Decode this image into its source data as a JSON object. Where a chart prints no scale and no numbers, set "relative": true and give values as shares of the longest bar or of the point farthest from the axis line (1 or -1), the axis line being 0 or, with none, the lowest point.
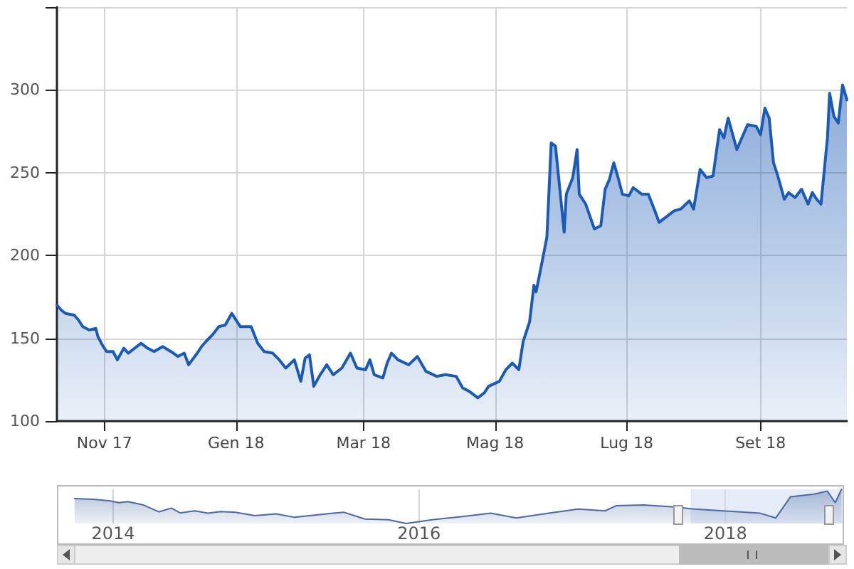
{
  "chart_data": [
    {
      "type": "area",
      "x": [
        "2017-10-10",
        "2017-10-12",
        "2017-10-14",
        "2017-10-18",
        "2017-10-20",
        "2017-10-22",
        "2017-10-25",
        "2017-10-28",
        "2017-10-29",
        "2017-10-31",
        "2017-11-02",
        "2017-11-05",
        "2017-11-07",
        "2017-11-10",
        "2017-11-12",
        "2017-11-15",
        "2017-11-18",
        "2017-11-21",
        "2017-11-24",
        "2017-11-28",
        "2017-12-03",
        "2017-12-05",
        "2017-12-08",
        "2017-12-10",
        "2017-12-14",
        "2017-12-16",
        "2017-12-18",
        "2017-12-21",
        "2017-12-24",
        "2017-12-27",
        "2017-12-30",
        "2018-01-03",
        "2018-01-08",
        "2018-01-11",
        "2018-01-14",
        "2018-01-18",
        "2018-01-21",
        "2018-01-24",
        "2018-01-28",
        "2018-01-31",
        "2018-02-02",
        "2018-02-04",
        "2018-02-06",
        "2018-02-09",
        "2018-02-12",
        "2018-02-15",
        "2018-02-19",
        "2018-02-23",
        "2018-02-26",
        "2018-03-02",
        "2018-03-04",
        "2018-03-06",
        "2018-03-10",
        "2018-03-12",
        "2018-03-14",
        "2018-03-17",
        "2018-03-22",
        "2018-03-26",
        "2018-03-30",
        "2018-04-04",
        "2018-04-08",
        "2018-04-13",
        "2018-04-16",
        "2018-04-19",
        "2018-04-23",
        "2018-04-26",
        "2018-04-28",
        "2018-05-03",
        "2018-05-06",
        "2018-05-09",
        "2018-05-12",
        "2018-05-14",
        "2018-05-17",
        "2018-05-19",
        "2018-05-20",
        "2018-05-22",
        "2018-05-25",
        "2018-05-27",
        "2018-05-29",
        "2018-05-31",
        "2018-06-02",
        "2018-06-03",
        "2018-06-06",
        "2018-06-08",
        "2018-06-09",
        "2018-06-12",
        "2018-06-16",
        "2018-06-19",
        "2018-06-21",
        "2018-06-23",
        "2018-06-25",
        "2018-06-27",
        "2018-06-29",
        "2018-07-02",
        "2018-07-04",
        "2018-07-08",
        "2018-07-11",
        "2018-07-14",
        "2018-07-16",
        "2018-07-20",
        "2018-07-23",
        "2018-07-26",
        "2018-07-30",
        "2018-08-01",
        "2018-08-04",
        "2018-08-07",
        "2018-08-10",
        "2018-08-13",
        "2018-08-15",
        "2018-08-17",
        "2018-08-21",
        "2018-08-24",
        "2018-08-26",
        "2018-08-30",
        "2018-09-01",
        "2018-09-03",
        "2018-09-05",
        "2018-09-07",
        "2018-09-09",
        "2018-09-12",
        "2018-09-14",
        "2018-09-17",
        "2018-09-20",
        "2018-09-23",
        "2018-09-25",
        "2018-09-27",
        "2018-09-29",
        "2018-10-02",
        "2018-10-03",
        "2018-10-05",
        "2018-10-07",
        "2018-10-09",
        "2018-10-11"
      ],
      "series": [
        {
          "color": "#1c5bb5",
          "values": [
            170,
            167,
            165,
            164,
            161,
            157,
            155,
            156,
            151,
            146,
            142,
            142,
            137,
            144,
            141,
            144,
            147,
            144,
            142,
            145,
            141,
            139,
            141,
            134,
            141,
            145,
            148,
            152,
            157,
            158,
            165,
            157,
            157,
            147,
            142,
            141,
            137,
            132,
            137,
            124,
            138,
            140,
            121,
            128,
            134,
            128,
            132,
            141,
            132,
            131,
            137,
            128,
            126,
            135,
            141,
            137,
            134,
            139,
            130,
            127,
            128,
            127,
            120,
            118,
            114,
            117,
            121,
            124,
            131,
            135,
            131,
            148,
            160,
            182,
            178,
            191,
            211,
            268,
            266,
            240,
            214,
            237,
            247,
            264,
            237,
            231,
            216,
            218,
            240,
            246,
            256,
            247,
            237,
            236,
            241,
            237,
            237,
            227,
            220,
            224,
            227,
            228,
            233,
            228,
            252,
            247,
            248,
            276,
            271,
            283,
            264,
            273,
            279,
            278,
            273,
            289,
            283,
            256,
            248,
            234,
            238,
            235,
            240,
            231,
            238,
            234,
            231,
            271,
            298,
            284,
            280,
            303,
            294
          ]
        }
      ],
      "xlim": [
        "2017-10-10",
        "2018-10-11"
      ],
      "xticks": [
        {
          "value": "2017-11-01",
          "label": "Nov 17"
        },
        {
          "value": "2018-01-01",
          "label": "Gen 18"
        },
        {
          "value": "2018-03-01",
          "label": "Mar 18"
        },
        {
          "value": "2018-05-01",
          "label": "Mag 18"
        },
        {
          "value": "2018-07-01",
          "label": "Lug 18"
        },
        {
          "value": "2018-09-01",
          "label": "Set 18"
        }
      ],
      "ylim": [
        100,
        350
      ],
      "yticks": [
        100,
        150,
        200,
        250,
        300,
        {
          "value": 350,
          "label": null
        }
      ],
      "grid": true
    },
    {
      "type": "area",
      "relative": true,
      "x": [
        "2013-10-01",
        "2013-11-15",
        "2013-12-25",
        "2014-01-15",
        "2014-02-05",
        "2014-03-15",
        "2014-04-20",
        "2014-05-20",
        "2014-06-10",
        "2014-07-15",
        "2014-08-15",
        "2014-09-15",
        "2014-10-20",
        "2014-12-05",
        "2015-01-25",
        "2015-03-10",
        "2015-04-15",
        "2015-06-10",
        "2015-07-05",
        "2015-08-25",
        "2015-10-20",
        "2015-12-01",
        "2016-02-01",
        "2016-04-10",
        "2016-06-20",
        "2016-08-20",
        "2016-11-05",
        "2017-01-15",
        "2017-03-20",
        "2017-04-15",
        "2017-06-20",
        "2017-08-25",
        "2017-10-20",
        "2017-12-25",
        "2018-03-25",
        "2018-05-01",
        "2018-06-05",
        "2018-08-01",
        "2018-09-01",
        "2018-09-20",
        "2018-10-05"
      ],
      "series": [
        {
          "color": "#4a6aa5",
          "values": [
            0.73,
            0.71,
            0.66,
            0.61,
            0.64,
            0.54,
            0.34,
            0.45,
            0.31,
            0.37,
            0.3,
            0.35,
            0.33,
            0.23,
            0.28,
            0.18,
            0.23,
            0.3,
            0.33,
            0.13,
            0.11,
            0,
            0.11,
            0.2,
            0.3,
            0.16,
            0.3,
            0.42,
            0.37,
            0.52,
            0.54,
            0.49,
            0.42,
            0.37,
            0.3,
            0.16,
            0.78,
            0.86,
            0.95,
            0.61,
            1
          ]
        }
      ],
      "xlim": [
        "2013-08-20",
        "2018-10-11"
      ],
      "xticks": [
        {
          "value": "2014-01-01",
          "label": "2014"
        },
        {
          "value": "2016-01-01",
          "label": "2016"
        },
        {
          "value": "2018-01-01",
          "label": "2018"
        }
      ],
      "grid": "x",
      "tick_labels": "x",
      "bands": [
        {
          "axis": "x",
          "from": "2017-10-10",
          "to": "2018-10-11",
          "color": "#d4e0f4"
        }
      ]
    }
  ]
}
